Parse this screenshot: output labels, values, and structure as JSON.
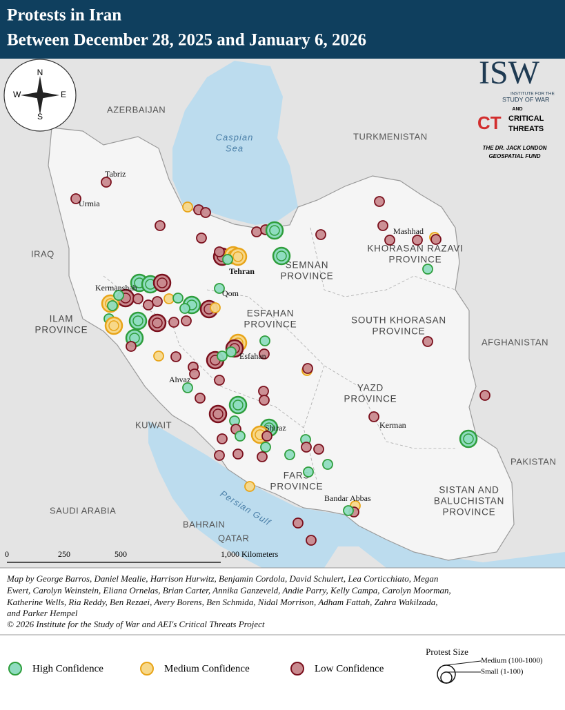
{
  "header": {
    "title_line1": "Protests in Iran",
    "title_line2": "Between December 28, 2025 and January 6, 2026"
  },
  "logo": {
    "isw": "ISW",
    "isw_sub1": "INSTITUTE FOR THE",
    "isw_sub2": "STUDY OF WAR",
    "and": "AND",
    "ct": "CT",
    "ct_name1": "CRITICAL",
    "ct_name2": "THREATS",
    "fund1": "THE DR. JACK LONDON",
    "fund2": "GEOSPATIAL FUND"
  },
  "compass": {
    "n": "N",
    "s": "S",
    "e": "E",
    "w": "W"
  },
  "map": {
    "countries": [
      "AZERBAIJAN",
      "TURKMENISTAN",
      "IRAQ",
      "KUWAIT",
      "SAUDI ARABIA",
      "BAHRAIN",
      "QATAR",
      "AFGHANISTAN",
      "PAKISTAN"
    ],
    "water": [
      "Caspian",
      "Sea",
      "Persian Gulf"
    ],
    "provinces": [
      [
        "SEMNAN",
        "PROVINCE"
      ],
      [
        "KHORASAN RAZAVI",
        "PROVINCE"
      ],
      [
        "ESFAHAN",
        "PROVINCE"
      ],
      [
        "SOUTH KHORASAN",
        "PROVINCE"
      ],
      [
        "ILAM",
        "PROVINCE"
      ],
      [
        "YAZD",
        "PROVINCE"
      ],
      [
        "FARS",
        "PROVINCE"
      ],
      [
        "SISTAN AND",
        "BALUCHISTAN",
        "PROVINCE"
      ]
    ],
    "cities": [
      "Tabriz",
      "Urmia",
      "Mashhad",
      "Tehran",
      "Kermanshah",
      "Qom",
      "Esfahan",
      "Ahvaz",
      "Shiraz",
      "Kerman",
      "Bandar Abbas"
    ]
  },
  "scale": {
    "labels": [
      "0",
      "250",
      "500",
      "1,000 Kilometers"
    ]
  },
  "credits": {
    "lines": [
      "Map by George Barros, Daniel Mealie, Harrison Hurwitz, Benjamin Cordola, David Schulert, Lea Corticchiato, Megan",
      "Ewert, Carolyn Weinstein, Eliana Ornelas, Brian Carter, Annika Ganzeveld, Andie Parry, Kelly Campa, Carolyn Moorman,",
      "Katherine Wells, Ria Reddy, Ben Rezaei, Avery Borens, Ben Schmida, Nidal Morrison, Adham Fattah, Zahra Wakilzada,",
      "and Parker Hempel"
    ],
    "copyright": "© 2026 Institute for the Study of War and AEI's Critical Threats Project"
  },
  "legend": {
    "items": [
      "High Confidence",
      "Medium Confidence",
      "Low Confidence"
    ],
    "size_title": "Protest Size",
    "size_medium": "Medium (100-1000)",
    "size_small": "Small (1-100)"
  }
}
